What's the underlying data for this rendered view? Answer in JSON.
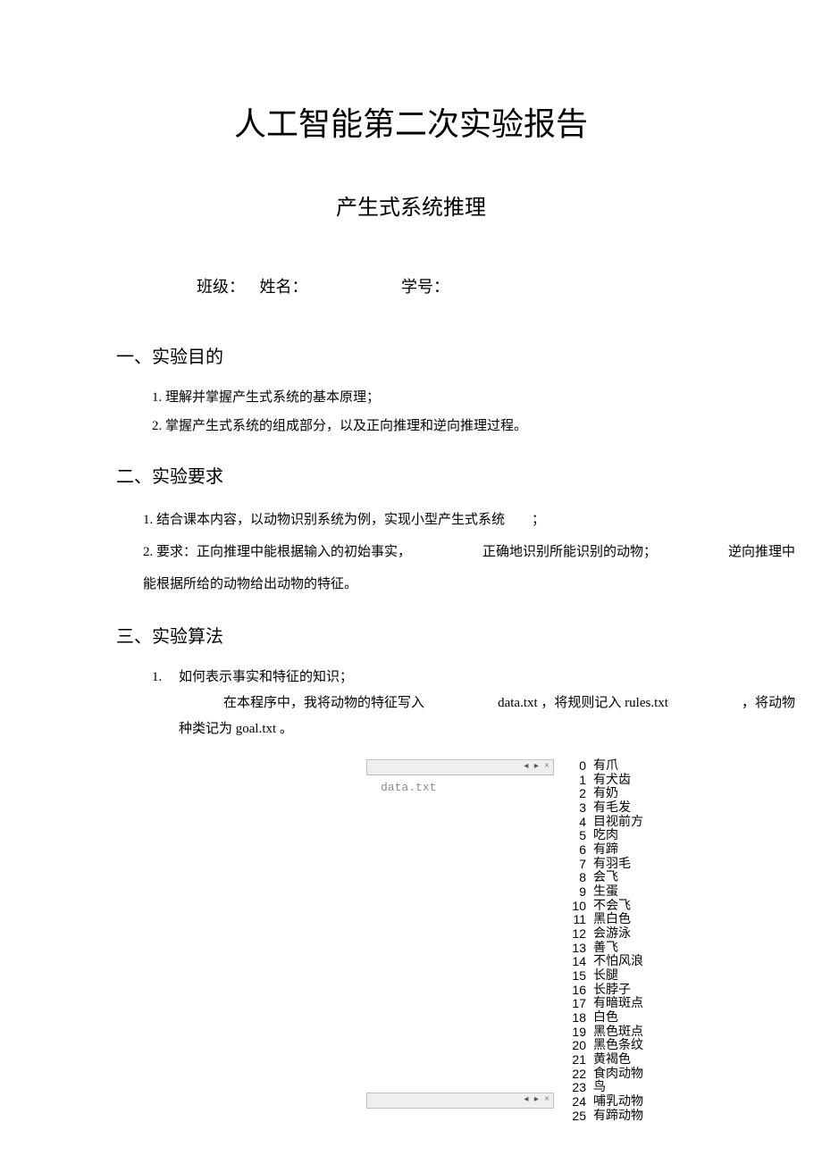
{
  "title": "人工智能第二次实验报告",
  "subtitle": "产生式系统推理",
  "info": {
    "class_label": "班级：",
    "name_label": "姓名：",
    "id_label": "学号："
  },
  "section1": {
    "heading": "一、实验目的",
    "item1": "1. 理解并掌握产生式系统的基本原理；",
    "item2": "2. 掌握产生式系统的组成部分，以及正向推理和逆向推理过程。"
  },
  "section2": {
    "heading": "二、实验要求",
    "item1": "1. 结合课本内容，以动物识别系统为例，实现小型产生式系统　　；",
    "item2a": "2. 要求：正向推理中能根据输入的初始事实，",
    "item2b": "正确地识别所能识别的动物；",
    "item2c": "逆向推理中",
    "item3": "能根据所给的动物给出动物的特征。"
  },
  "section3": {
    "heading": "三、实验算法",
    "line1": "1.　 如何表示事实和特征的知识；",
    "line2a": "在本程序中，我将动物的特征写入",
    "line2b": "data.txt ，将规则记入 rules.txt",
    "line2c": "，将动物",
    "line3": "种类记为 goal.txt 。"
  },
  "tab_label": "data.txt",
  "tab_ctrl": "◂ ▸ ×",
  "data_items": [
    {
      "i": "0",
      "t": "有爪"
    },
    {
      "i": "1",
      "t": "有犬齿"
    },
    {
      "i": "2",
      "t": "有奶"
    },
    {
      "i": "3",
      "t": "有毛发"
    },
    {
      "i": "4",
      "t": "目视前方"
    },
    {
      "i": "5",
      "t": "吃肉"
    },
    {
      "i": "6",
      "t": "有蹄"
    },
    {
      "i": "7",
      "t": "有羽毛"
    },
    {
      "i": "8",
      "t": "会飞"
    },
    {
      "i": "9",
      "t": "生蛋"
    },
    {
      "i": "10",
      "t": "不会飞"
    },
    {
      "i": "11",
      "t": "黑白色"
    },
    {
      "i": "12",
      "t": "会游泳"
    },
    {
      "i": "13",
      "t": "善飞"
    },
    {
      "i": "14",
      "t": "不怕风浪"
    },
    {
      "i": "15",
      "t": "长腿"
    },
    {
      "i": "16",
      "t": "长脖子"
    },
    {
      "i": "17",
      "t": "有暗斑点"
    },
    {
      "i": "18",
      "t": "白色"
    },
    {
      "i": "19",
      "t": "黑色斑点"
    },
    {
      "i": "20",
      "t": "黑色条纹"
    },
    {
      "i": "21",
      "t": "黄褐色"
    },
    {
      "i": "22",
      "t": "食肉动物"
    },
    {
      "i": "23",
      "t": "鸟"
    },
    {
      "i": "24",
      "t": "哺乳动物"
    },
    {
      "i": "25",
      "t": "有蹄动物"
    }
  ]
}
